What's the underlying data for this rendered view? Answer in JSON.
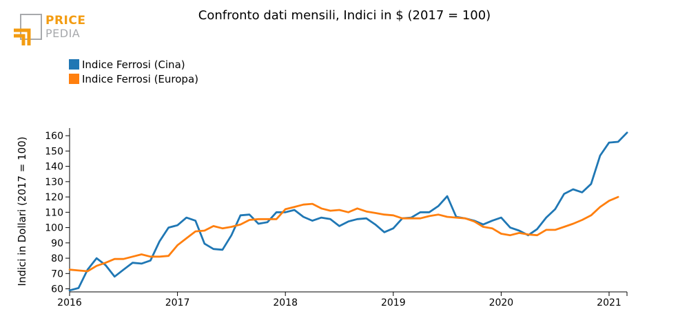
{
  "logo": {
    "line1": "PRICE",
    "line2": "PEDIA",
    "accent": "#f39c12",
    "secondary": "#a7a9ac"
  },
  "chart_data": {
    "type": "line",
    "title": "Confronto dati mensili, Indici in $ (2017 = 100)",
    "ylabel": "Indici in Dollari (2017 = 100)",
    "xlabel": "",
    "x_start": "2016-01",
    "x_ticks": [
      "2016",
      "2017",
      "2018",
      "2019",
      "2020",
      "2021"
    ],
    "y_ticks": [
      60,
      70,
      80,
      90,
      100,
      110,
      120,
      130,
      140,
      150,
      160
    ],
    "ylim": [
      58,
      165
    ],
    "grid": false,
    "legend_position": "top-left",
    "series": [
      {
        "name": "Indice Ferrosi (Cina)",
        "color": "#1f77b4",
        "values": [
          59,
          60.5,
          72.5,
          80,
          75.5,
          68,
          72.5,
          77,
          76.5,
          78.5,
          91,
          100,
          101.5,
          106.5,
          104.5,
          89.5,
          86,
          85.5,
          95,
          108,
          108.5,
          102.5,
          103.5,
          110,
          110,
          111.5,
          107,
          104.5,
          106.5,
          105.5,
          101,
          104,
          105.5,
          106,
          102,
          97,
          99.5,
          106,
          106.5,
          110,
          110,
          114,
          120.5,
          107,
          106,
          104.5,
          102,
          104.5,
          106.5,
          100,
          98,
          95,
          99,
          106.5,
          112,
          122,
          125,
          123,
          128.5,
          147,
          155.5,
          156,
          162
        ]
      },
      {
        "name": "Indice Ferrosi (Europa)",
        "color": "#ff7f0e",
        "values": [
          72.5,
          72,
          71.5,
          75,
          77,
          79.5,
          79.5,
          81,
          82.5,
          81,
          81,
          81.5,
          88.5,
          93,
          97.5,
          98,
          101,
          99.5,
          100.5,
          102,
          105,
          105.5,
          105.5,
          105.5,
          112,
          113.5,
          115,
          115.5,
          112.5,
          111,
          111.5,
          110,
          112.5,
          110.5,
          109.5,
          108.5,
          108,
          106,
          106,
          106,
          107.5,
          108.5,
          107,
          106.5,
          106,
          104,
          100.5,
          99.5,
          96,
          95,
          96.5,
          95.5,
          95,
          98.5,
          98.5,
          100.5,
          102.5,
          105,
          108,
          113.5,
          117.5,
          120
        ]
      }
    ]
  }
}
